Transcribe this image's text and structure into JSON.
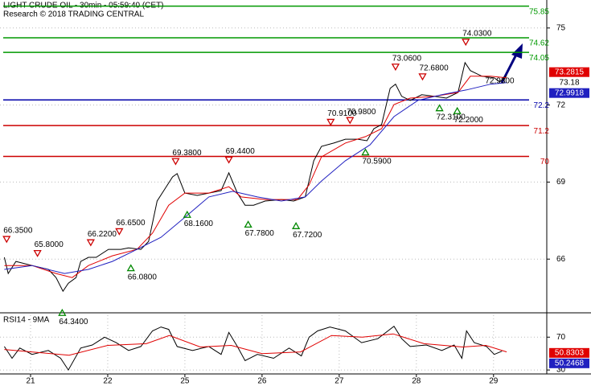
{
  "chart_data": [
    {
      "type": "line",
      "title": "LIGHT CRUDE OIL - 30min - 05:59:40 (CET)",
      "subtitle": "Research © 2018 TRADING CENTRAL",
      "xlim": [
        -0.396,
        6.69
      ],
      "ylim": [
        63.94,
        76.09
      ],
      "yticks": [
        75,
        72,
        69,
        66
      ],
      "grid": true,
      "series": [
        {
          "color": "#000000",
          "x": [
            -0.34,
            -0.29,
            -0.19,
            0.02,
            0.23,
            0.33,
            0.42,
            0.49,
            0.59,
            0.65,
            0.75,
            0.85,
            1.01,
            1.17,
            1.27,
            1.43,
            1.53,
            1.64,
            1.74,
            1.84,
            1.9,
            2.0,
            2.16,
            2.31,
            2.47,
            2.57,
            2.68,
            2.78,
            2.89,
            3.04,
            3.25,
            3.41,
            3.56,
            3.67,
            3.77,
            3.93,
            4.08,
            4.24,
            4.36,
            4.45,
            4.55,
            4.66,
            4.73,
            4.81,
            4.92,
            5.07,
            5.23,
            5.39,
            5.54,
            5.63,
            5.7,
            5.85,
            6.01,
            6.08,
            6.17
          ],
          "values": [
            66.07,
            65.44,
            65.91,
            65.75,
            65.6,
            65.28,
            64.75,
            65.06,
            65.28,
            65.91,
            66.07,
            66.07,
            66.38,
            66.38,
            66.44,
            66.38,
            66.69,
            68.26,
            68.73,
            69.2,
            69.33,
            68.57,
            68.48,
            68.57,
            68.67,
            69.36,
            68.57,
            68.1,
            68.1,
            68.26,
            68.32,
            68.26,
            68.42,
            69.83,
            70.39,
            70.52,
            70.67,
            70.67,
            70.61,
            71.08,
            71.24,
            72.65,
            72.81,
            72.34,
            72.18,
            72.4,
            72.34,
            72.27,
            72.49,
            73.65,
            73.34,
            73.12,
            73.06,
            72.9,
            73.15
          ]
        },
        {
          "color": "#e00000",
          "x": [
            -0.34,
            0.02,
            0.33,
            0.54,
            0.75,
            1.06,
            1.38,
            1.58,
            1.79,
            2.0,
            2.31,
            2.57,
            2.73,
            3.04,
            3.46,
            3.61,
            3.77,
            4.08,
            4.34,
            4.55,
            4.71,
            4.92,
            5.23,
            5.54,
            5.7,
            5.96,
            6.17
          ],
          "values": [
            65.75,
            65.75,
            65.44,
            65.28,
            65.75,
            66.13,
            66.38,
            67.01,
            68.1,
            68.57,
            68.57,
            68.82,
            68.42,
            68.32,
            68.32,
            68.89,
            69.98,
            70.52,
            70.77,
            71.08,
            72.02,
            72.27,
            72.34,
            72.49,
            73.12,
            73.12,
            73.06
          ]
        },
        {
          "color": "#2020c0",
          "x": [
            -0.34,
            0.02,
            0.44,
            0.75,
            1.06,
            1.38,
            1.69,
            2.0,
            2.31,
            2.62,
            2.94,
            3.25,
            3.56,
            3.77,
            4.08,
            4.4,
            4.71,
            5.02,
            5.33,
            5.65,
            5.96,
            6.17
          ],
          "values": [
            65.6,
            65.75,
            65.44,
            65.6,
            65.91,
            66.38,
            66.85,
            67.63,
            68.42,
            68.64,
            68.42,
            68.26,
            68.42,
            69.04,
            69.83,
            70.45,
            71.55,
            72.18,
            72.4,
            72.59,
            72.81,
            72.87
          ]
        }
      ],
      "levels": [
        {
          "value": 75.85,
          "color": "#009900"
        },
        {
          "value": 74.62,
          "color": "#009900"
        },
        {
          "value": 74.05,
          "color": "#009900"
        },
        {
          "value": 72.2,
          "color": "#0000aa"
        },
        {
          "value": 71.2,
          "color": "#cc0000"
        },
        {
          "value": 70,
          "color": "#cc0000"
        }
      ],
      "annotations": [
        {
          "x": -0.31,
          "value": 66.35,
          "label": "66.3500",
          "marker": "down"
        },
        {
          "x": 0.09,
          "value": 65.8,
          "label": "65.8000",
          "marker": "down"
        },
        {
          "x": 0.41,
          "value": 64.34,
          "label": "64.3400",
          "marker": "up"
        },
        {
          "x": 0.78,
          "value": 66.22,
          "label": "66.2200",
          "marker": "down"
        },
        {
          "x": 1.15,
          "value": 66.65,
          "label": "66.6500",
          "marker": "down"
        },
        {
          "x": 1.3,
          "value": 66.08,
          "label": "66.0800",
          "marker": "up"
        },
        {
          "x": 1.88,
          "value": 69.38,
          "label": "69.3800",
          "marker": "down"
        },
        {
          "x": 2.03,
          "value": 68.16,
          "label": "68.1600",
          "marker": "up"
        },
        {
          "x": 2.57,
          "value": 69.44,
          "label": "69.4400",
          "marker": "down"
        },
        {
          "x": 2.82,
          "value": 67.78,
          "label": "67.7800",
          "marker": "up"
        },
        {
          "x": 3.44,
          "value": 67.72,
          "label": "67.7200",
          "marker": "up"
        },
        {
          "x": 3.89,
          "value": 70.91,
          "label": "70.9100",
          "marker": "down"
        },
        {
          "x": 4.14,
          "value": 70.98,
          "label": "70.9800",
          "marker": "down"
        },
        {
          "x": 4.34,
          "value": 70.59,
          "label": "70.5900",
          "marker": "up"
        },
        {
          "x": 4.73,
          "value": 73.06,
          "label": "73.0600",
          "marker": "down"
        },
        {
          "x": 5.08,
          "value": 72.68,
          "label": "72.6800",
          "marker": "down"
        },
        {
          "x": 5.3,
          "value": 72.31,
          "label": "72.3100",
          "marker": "up"
        },
        {
          "x": 5.53,
          "value": 72.2,
          "label": "72.2000",
          "marker": "up"
        },
        {
          "x": 5.64,
          "value": 74.03,
          "label": "74.0300",
          "marker": "down"
        },
        {
          "x": 6.08,
          "value": 72.93,
          "label": "72.9300",
          "marker": null
        }
      ],
      "price_labels": [
        {
          "value": 73.2815,
          "color": "#e00000",
          "boxed": true
        },
        {
          "value": 73.18,
          "color": "#000000",
          "boxed": false
        },
        {
          "value": 72.9918,
          "color": "#2020c0",
          "boxed": true
        }
      ]
    },
    {
      "type": "line",
      "title": "RSI14 - 9MA",
      "xlim": [
        -0.396,
        6.69
      ],
      "xticks": [
        {
          "value": 0,
          "label": "21"
        },
        {
          "value": 1,
          "label": "22"
        },
        {
          "value": 2,
          "label": "25"
        },
        {
          "value": 3,
          "label": "26"
        },
        {
          "value": 4,
          "label": "27"
        },
        {
          "value": 5,
          "label": "28"
        },
        {
          "value": 6,
          "label": "29"
        }
      ],
      "ylim": [
        25.2,
        96.7
      ],
      "yticks": [
        70,
        30
      ],
      "grid": true,
      "series": [
        {
          "color": "#000000",
          "x": [
            -0.34,
            -0.24,
            -0.14,
            0.02,
            0.23,
            0.39,
            0.49,
            0.65,
            0.8,
            0.96,
            1.11,
            1.27,
            1.43,
            1.58,
            1.69,
            1.79,
            1.9,
            2.1,
            2.31,
            2.47,
            2.57,
            2.68,
            2.78,
            2.94,
            3.15,
            3.35,
            3.51,
            3.61,
            3.72,
            3.88,
            4.08,
            4.29,
            4.5,
            4.71,
            4.81,
            4.92,
            5.13,
            5.33,
            5.49,
            5.59,
            5.65,
            5.75,
            5.91,
            6.01,
            6.11
          ],
          "values": [
            58.6,
            44.3,
            56.7,
            49.0,
            53.8,
            44.3,
            30.0,
            56.7,
            60.5,
            70.0,
            63.3,
            53.8,
            58.6,
            77.6,
            82.4,
            79.5,
            58.6,
            53.8,
            58.6,
            49.0,
            75.7,
            58.6,
            41.4,
            49.0,
            44.3,
            56.7,
            47.1,
            70.0,
            77.6,
            82.4,
            77.6,
            63.3,
            68.1,
            83.3,
            68.1,
            58.6,
            60.5,
            53.8,
            60.5,
            44.3,
            77.6,
            63.3,
            58.6,
            49.0,
            52.9
          ]
        },
        {
          "color": "#e00000",
          "x": [
            -0.34,
            0.5,
            1.0,
            1.5,
            1.8,
            2.2,
            2.6,
            3.0,
            3.5,
            3.9,
            4.3,
            4.7,
            5.1,
            5.6,
            5.9,
            6.17
          ],
          "values": [
            55,
            48,
            60,
            62,
            72,
            58,
            60,
            50,
            52,
            72,
            70,
            74,
            62,
            58,
            60,
            52
          ]
        }
      ],
      "price_labels": [
        {
          "value": 50.8303,
          "color": "#e00000",
          "boxed": true
        },
        {
          "value": 50.2468,
          "color": "#2020c0",
          "boxed": true
        }
      ]
    }
  ]
}
